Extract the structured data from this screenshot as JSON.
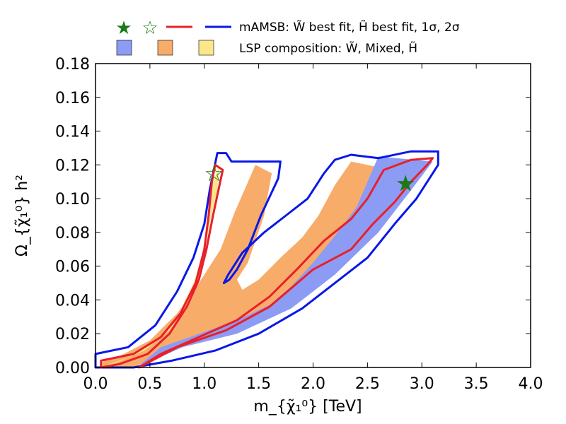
{
  "chart_data": {
    "type": "scatter",
    "xlabel": "m_{χ̃₁⁰} [TeV]",
    "ylabel": "Ω_{χ̃₁⁰} h²",
    "xlim": [
      0.0,
      4.0
    ],
    "ylim": [
      0.0,
      0.18
    ],
    "xticks": [
      "0.0",
      "0.5",
      "1.0",
      "1.5",
      "2.0",
      "2.5",
      "3.0",
      "3.5",
      "4.0"
    ],
    "yticks": [
      "0.00",
      "0.02",
      "0.04",
      "0.06",
      "0.08",
      "0.10",
      "0.12",
      "0.14",
      "0.16",
      "0.18"
    ],
    "grid": false,
    "legend_placement": "top",
    "legend": {
      "row1_text": "mAMSB: W̃ best fit, H̃ best fit, 1σ, 2σ",
      "row2_text": "LSP composition: W̃, Mixed, H̃"
    },
    "colors": {
      "wino": "#8c9cf5",
      "mixed": "#f8ac6a",
      "higgsino": "#fbe68c",
      "one_sigma": "#e8202a",
      "two_sigma": "#0818e8",
      "best_fit": "#1a7a1a"
    },
    "best_fit_points": [
      {
        "name": "W̃ best fit",
        "x": 2.85,
        "y": 0.109,
        "marker": "filled-star"
      },
      {
        "name": "H̃ best fit",
        "x": 1.09,
        "y": 0.115,
        "marker": "open-star"
      }
    ],
    "regions": {
      "mixed_region": [
        [
          0.35,
          0.0
        ],
        [
          0.6,
          0.008
        ],
        [
          0.9,
          0.016
        ],
        [
          1.2,
          0.022
        ],
        [
          1.6,
          0.03
        ],
        [
          1.9,
          0.045
        ],
        [
          2.1,
          0.06
        ],
        [
          2.3,
          0.075
        ],
        [
          2.45,
          0.088
        ],
        [
          2.6,
          0.1
        ],
        [
          2.65,
          0.118
        ],
        [
          2.35,
          0.122
        ],
        [
          2.2,
          0.108
        ],
        [
          2.05,
          0.09
        ],
        [
          1.9,
          0.077
        ],
        [
          1.7,
          0.065
        ],
        [
          1.5,
          0.052
        ],
        [
          1.35,
          0.046
        ],
        [
          1.3,
          0.052
        ],
        [
          1.4,
          0.062
        ],
        [
          1.55,
          0.09
        ],
        [
          1.62,
          0.115
        ],
        [
          1.47,
          0.12
        ],
        [
          1.28,
          0.092
        ],
        [
          1.15,
          0.07
        ],
        [
          0.95,
          0.05
        ],
        [
          0.75,
          0.032
        ],
        [
          0.5,
          0.016
        ],
        [
          0.2,
          0.006
        ],
        [
          0.05,
          0.003
        ],
        [
          0.05,
          0.0
        ]
      ],
      "wino_region": [
        [
          0.38,
          0.0
        ],
        [
          0.8,
          0.012
        ],
        [
          1.3,
          0.02
        ],
        [
          1.8,
          0.035
        ],
        [
          2.2,
          0.055
        ],
        [
          2.6,
          0.08
        ],
        [
          2.9,
          0.105
        ],
        [
          3.1,
          0.122
        ],
        [
          2.6,
          0.125
        ],
        [
          2.5,
          0.11
        ],
        [
          2.4,
          0.095
        ],
        [
          2.2,
          0.078
        ],
        [
          2.0,
          0.062
        ],
        [
          1.8,
          0.048
        ],
        [
          1.6,
          0.037
        ],
        [
          1.3,
          0.028
        ],
        [
          1.0,
          0.021
        ],
        [
          0.6,
          0.012
        ]
      ],
      "higgsino_region": [
        [
          0.05,
          0.0
        ],
        [
          0.3,
          0.006
        ],
        [
          0.55,
          0.015
        ],
        [
          0.75,
          0.03
        ],
        [
          0.9,
          0.05
        ],
        [
          1.0,
          0.07
        ],
        [
          1.05,
          0.09
        ],
        [
          1.08,
          0.11
        ],
        [
          1.14,
          0.12
        ],
        [
          1.12,
          0.105
        ],
        [
          1.05,
          0.085
        ],
        [
          0.98,
          0.06
        ],
        [
          0.86,
          0.04
        ],
        [
          0.68,
          0.022
        ],
        [
          0.45,
          0.01
        ],
        [
          0.2,
          0.003
        ]
      ],
      "one_sigma_contour_a": [
        [
          0.05,
          0.0
        ],
        [
          0.05,
          0.004
        ],
        [
          0.35,
          0.008
        ],
        [
          0.6,
          0.018
        ],
        [
          0.78,
          0.032
        ],
        [
          0.92,
          0.05
        ],
        [
          1.0,
          0.07
        ],
        [
          1.04,
          0.09
        ],
        [
          1.07,
          0.11
        ],
        [
          1.1,
          0.12
        ],
        [
          1.17,
          0.117
        ],
        [
          1.13,
          0.105
        ],
        [
          1.08,
          0.09
        ],
        [
          1.02,
          0.07
        ],
        [
          0.95,
          0.052
        ],
        [
          0.84,
          0.036
        ],
        [
          0.68,
          0.02
        ],
        [
          0.48,
          0.008
        ],
        [
          0.22,
          0.002
        ],
        [
          0.05,
          0.0
        ]
      ],
      "one_sigma_contour_b": [
        [
          0.4,
          0.0
        ],
        [
          0.75,
          0.012
        ],
        [
          1.2,
          0.022
        ],
        [
          1.6,
          0.036
        ],
        [
          2.0,
          0.058
        ],
        [
          2.35,
          0.07
        ],
        [
          2.55,
          0.085
        ],
        [
          2.75,
          0.098
        ],
        [
          2.9,
          0.11
        ],
        [
          3.05,
          0.12
        ],
        [
          3.1,
          0.124
        ],
        [
          2.9,
          0.123
        ],
        [
          2.65,
          0.117
        ],
        [
          2.5,
          0.1
        ],
        [
          2.35,
          0.088
        ],
        [
          2.1,
          0.075
        ],
        [
          1.85,
          0.058
        ],
        [
          1.6,
          0.042
        ],
        [
          1.3,
          0.028
        ],
        [
          0.95,
          0.018
        ],
        [
          0.6,
          0.008
        ],
        [
          0.4,
          0.0
        ]
      ],
      "two_sigma_contour_a": [
        [
          0.0,
          0.008
        ],
        [
          0.3,
          0.012
        ],
        [
          0.55,
          0.025
        ],
        [
          0.75,
          0.045
        ],
        [
          0.9,
          0.065
        ],
        [
          1.0,
          0.085
        ],
        [
          1.05,
          0.105
        ],
        [
          1.12,
          0.127
        ],
        [
          1.2,
          0.127
        ],
        [
          1.25,
          0.122
        ],
        [
          1.7,
          0.122
        ],
        [
          1.68,
          0.112
        ],
        [
          1.52,
          0.09
        ],
        [
          1.4,
          0.07
        ],
        [
          1.3,
          0.058
        ],
        [
          1.23,
          0.052
        ],
        [
          1.18,
          0.05
        ],
        [
          1.22,
          0.055
        ],
        [
          1.35,
          0.068
        ],
        [
          1.55,
          0.08
        ],
        [
          1.75,
          0.09
        ],
        [
          1.95,
          0.1
        ],
        [
          2.1,
          0.115
        ],
        [
          2.2,
          0.123
        ],
        [
          2.35,
          0.126
        ],
        [
          2.6,
          0.124
        ],
        [
          2.9,
          0.128
        ],
        [
          3.15,
          0.128
        ],
        [
          3.15,
          0.12
        ],
        [
          2.95,
          0.1
        ],
        [
          2.75,
          0.085
        ],
        [
          2.5,
          0.065
        ],
        [
          2.2,
          0.05
        ],
        [
          1.9,
          0.035
        ],
        [
          1.5,
          0.02
        ],
        [
          1.1,
          0.01
        ],
        [
          0.7,
          0.004
        ],
        [
          0.35,
          0.0
        ],
        [
          0.0,
          0.0
        ]
      ]
    }
  }
}
